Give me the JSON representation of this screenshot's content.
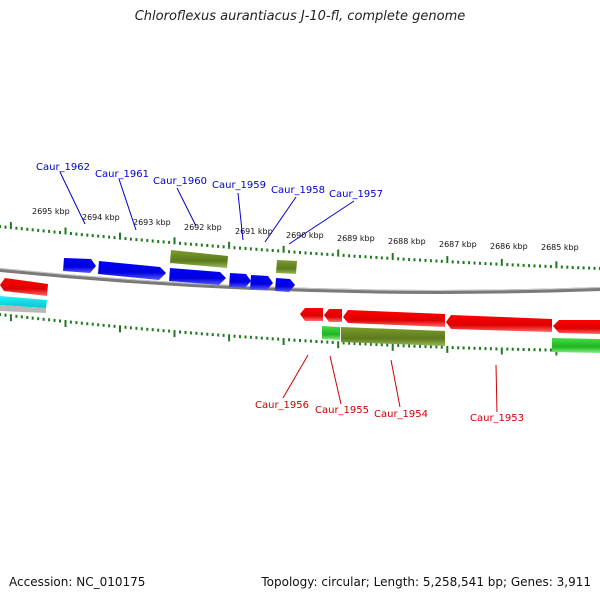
{
  "title": "Chloroflexus aurantiacus J-10-fl, complete genome",
  "footer": {
    "accession": "Accession: NC_010175",
    "summary": "Topology: circular; Length: 5,258,541 bp; Genes: 3,911"
  },
  "colors": {
    "forward_gene": "#0000ee",
    "reverse_gene": "#ee0000",
    "forward_olive": "#6b8e23",
    "reverse_green": "#22c322",
    "cyan_gene": "#00e5ee",
    "tick": "#1f7a1f",
    "backbone": "#8a8a8a",
    "forward_label": "#0000cc",
    "reverse_label": "#cc0000"
  },
  "scale_labels": [
    "2695 kbp",
    "2694 kbp",
    "2693 kbp",
    "2692 kbp",
    "2691 kbp",
    "2690 kbp",
    "2689 kbp",
    "2688 kbp",
    "2687 kbp",
    "2686 kbp",
    "2685 kbp"
  ],
  "forward_labels": [
    "Caur_1962",
    "Caur_1961",
    "Caur_1960",
    "Caur_1959",
    "Caur_1958",
    "Caur_1957"
  ],
  "reverse_labels": [
    "Caur_1956",
    "Caur_1955",
    "Caur_1954",
    "Caur_1953"
  ]
}
